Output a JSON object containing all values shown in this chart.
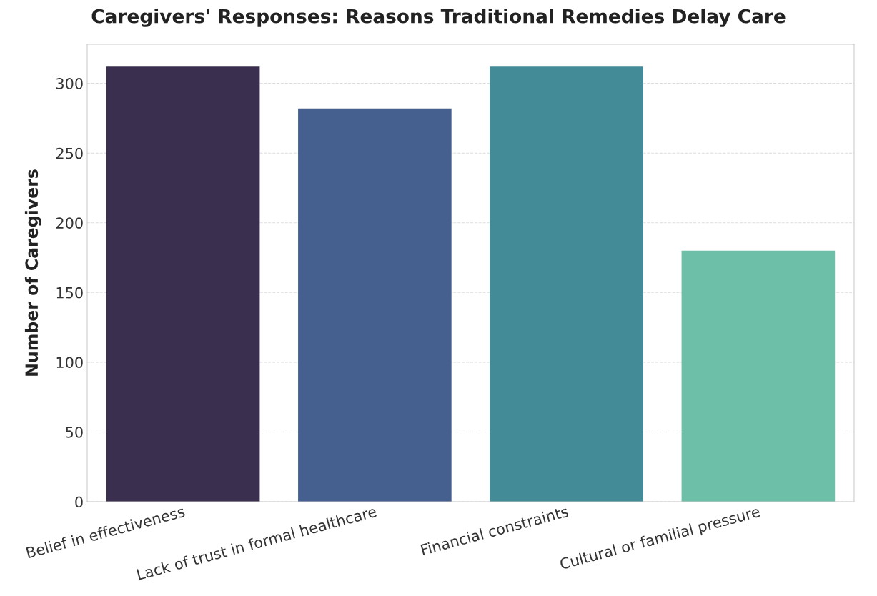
{
  "chart_data": {
    "type": "bar",
    "title": "Caregivers' Responses: Reasons Traditional Remedies Delay Care",
    "ylabel": "Number of Caregivers",
    "categories": [
      "Belief in effectiveness",
      "Lack of trust in formal healthcare",
      "Financial constraints",
      "Cultural or familial pressure"
    ],
    "values": [
      312,
      282,
      312,
      180
    ],
    "colors": [
      "#3b2f4f",
      "#455f8e",
      "#438b97",
      "#6dc0a7"
    ],
    "ylim": [
      0,
      328
    ],
    "yticks": [
      0,
      50,
      100,
      150,
      200,
      250,
      300
    ],
    "grid": "y"
  }
}
